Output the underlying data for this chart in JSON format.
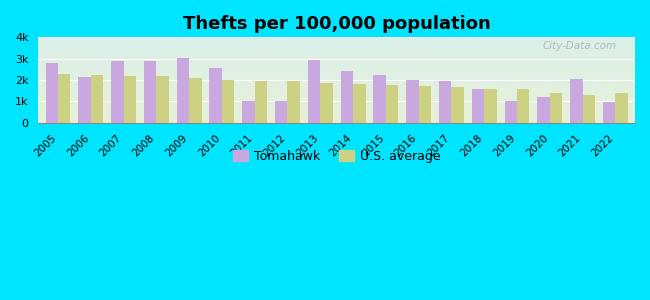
{
  "title": "Thefts per 100,000 population",
  "years": [
    2005,
    2006,
    2007,
    2008,
    2009,
    2010,
    2011,
    2012,
    2013,
    2014,
    2015,
    2016,
    2017,
    2018,
    2019,
    2020,
    2021,
    2022
  ],
  "tomahawk": [
    2800,
    2150,
    2900,
    2900,
    3050,
    2550,
    1000,
    1000,
    2950,
    2400,
    2250,
    2000,
    1950,
    1575,
    1000,
    1225,
    2025,
    950
  ],
  "us_average": [
    2300,
    2250,
    2200,
    2200,
    2075,
    2000,
    1975,
    1975,
    1875,
    1800,
    1750,
    1700,
    1650,
    1600,
    1575,
    1375,
    1275,
    1400
  ],
  "bar_color_tomahawk": "#c9a8e0",
  "bar_color_us": "#cdd183",
  "background_color_outer": "#00e5ff",
  "grad_top": "#daf0ea",
  "grad_bottom": "#e8f0d8",
  "ylim": [
    0,
    4000
  ],
  "yticks": [
    0,
    1000,
    2000,
    3000,
    4000
  ],
  "ytick_labels": [
    "0",
    "1k",
    "2k",
    "3k",
    "4k"
  ],
  "legend_label_1": "Tomahawk",
  "legend_label_2": "U.S. average",
  "watermark": "City-Data.com"
}
